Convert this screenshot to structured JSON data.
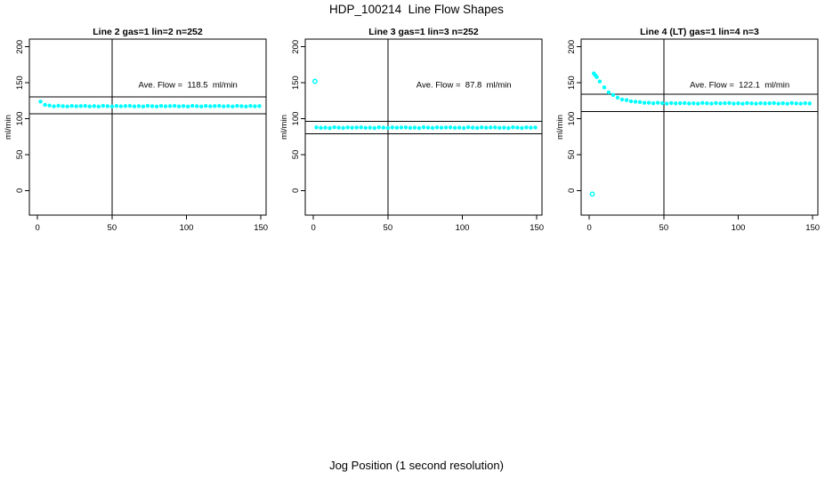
{
  "page": {
    "title": "HDP_100214  Line Flow Shapes",
    "x_axis_label": "Jog Position (1 second resolution)"
  },
  "colors": {
    "points": "#00FFFF",
    "axis": "#000000",
    "background": "#FFFFFF"
  },
  "chart_data": [
    {
      "type": "scatter",
      "title": "Line 2 gas=1 lin=2 n=252",
      "line": 2,
      "gas": 1,
      "lin": 2,
      "n": 252,
      "ave_flow": 118.5,
      "annotation": "Ave. Flow =  118.5  ml/min",
      "annotation_xy": [
        101,
        147
      ],
      "ylabel": "ml/min",
      "xlim": [
        -5.5,
        153.5
      ],
      "ylim": [
        -34.3,
        210.8
      ],
      "xticks": [
        0,
        50,
        100,
        150
      ],
      "yticks": [
        0,
        50,
        100,
        150,
        200
      ],
      "vline_x": 50,
      "hlines": [
        130.4,
        106.7
      ],
      "grid": false,
      "series": [
        {
          "name": "flow",
          "marker": "dot",
          "points": [
            [
              2,
              123.8
            ],
            [
              5,
              119.3
            ],
            [
              8,
              118.3
            ],
            [
              11,
              117.2
            ],
            [
              14,
              118.0
            ],
            [
              17,
              117.4
            ],
            [
              20,
              117.0
            ],
            [
              23,
              117.7
            ],
            [
              26,
              117.3
            ],
            [
              29,
              117.6
            ],
            [
              32,
              117.8
            ],
            [
              35,
              117.1
            ],
            [
              38,
              117.5
            ],
            [
              41,
              116.9
            ],
            [
              44,
              117.9
            ],
            [
              47,
              117.4
            ],
            [
              50,
              117.0
            ],
            [
              53,
              117.7
            ],
            [
              56,
              117.3
            ],
            [
              59,
              117.6
            ],
            [
              62,
              117.8
            ],
            [
              65,
              117.1
            ],
            [
              68,
              117.5
            ],
            [
              71,
              116.9
            ],
            [
              74,
              117.9
            ],
            [
              77,
              117.4
            ],
            [
              80,
              117.0
            ],
            [
              83,
              117.7
            ],
            [
              86,
              117.3
            ],
            [
              89,
              117.6
            ],
            [
              92,
              117.8
            ],
            [
              95,
              117.1
            ],
            [
              98,
              117.5
            ],
            [
              101,
              116.9
            ],
            [
              104,
              117.9
            ],
            [
              107,
              117.4
            ],
            [
              110,
              117.0
            ],
            [
              113,
              117.7
            ],
            [
              116,
              117.3
            ],
            [
              119,
              117.6
            ],
            [
              122,
              117.8
            ],
            [
              125,
              117.1
            ],
            [
              128,
              117.5
            ],
            [
              131,
              116.9
            ],
            [
              134,
              117.9
            ],
            [
              137,
              117.4
            ],
            [
              140,
              117.0
            ],
            [
              143,
              117.7
            ],
            [
              146,
              117.3
            ],
            [
              149,
              117.6
            ]
          ]
        },
        {
          "name": "outliers",
          "marker": "ring",
          "points": []
        }
      ]
    },
    {
      "type": "scatter",
      "title": "Line 3 gas=1 lin=3 n=252",
      "line": 3,
      "gas": 1,
      "lin": 3,
      "n": 252,
      "ave_flow": 87.8,
      "annotation": "Ave. Flow =  87.8  ml/min",
      "annotation_xy": [
        101,
        147
      ],
      "ylabel": "ml/min",
      "xlim": [
        -5.5,
        153.5
      ],
      "ylim": [
        -34.3,
        210.8
      ],
      "xticks": [
        0,
        50,
        100,
        150
      ],
      "yticks": [
        0,
        50,
        100,
        150,
        200
      ],
      "vline_x": 50,
      "hlines": [
        96.6,
        79.0
      ],
      "grid": false,
      "series": [
        {
          "name": "flow",
          "marker": "dot",
          "points": [
            [
              2,
              87.9
            ],
            [
              5,
              87.2
            ],
            [
              8,
              87.6
            ],
            [
              11,
              87.0
            ],
            [
              14,
              88.0
            ],
            [
              17,
              87.5
            ],
            [
              20,
              87.1
            ],
            [
              23,
              87.8
            ],
            [
              26,
              87.4
            ],
            [
              29,
              87.7
            ],
            [
              32,
              87.9
            ],
            [
              35,
              87.2
            ],
            [
              38,
              87.6
            ],
            [
              41,
              87.0
            ],
            [
              44,
              88.0
            ],
            [
              47,
              87.5
            ],
            [
              50,
              87.1
            ],
            [
              53,
              87.8
            ],
            [
              56,
              87.4
            ],
            [
              59,
              87.7
            ],
            [
              62,
              87.9
            ],
            [
              65,
              87.2
            ],
            [
              68,
              87.6
            ],
            [
              71,
              87.0
            ],
            [
              74,
              88.0
            ],
            [
              77,
              87.5
            ],
            [
              80,
              87.1
            ],
            [
              83,
              87.8
            ],
            [
              86,
              87.4
            ],
            [
              89,
              87.7
            ],
            [
              92,
              87.9
            ],
            [
              95,
              87.2
            ],
            [
              98,
              87.6
            ],
            [
              101,
              87.0
            ],
            [
              104,
              88.0
            ],
            [
              107,
              87.5
            ],
            [
              110,
              87.1
            ],
            [
              113,
              87.8
            ],
            [
              116,
              87.4
            ],
            [
              119,
              87.7
            ],
            [
              122,
              87.9
            ],
            [
              125,
              87.2
            ],
            [
              128,
              87.6
            ],
            [
              131,
              87.0
            ],
            [
              134,
              88.0
            ],
            [
              137,
              87.5
            ],
            [
              140,
              87.1
            ],
            [
              143,
              87.8
            ],
            [
              146,
              87.4
            ],
            [
              149,
              87.7
            ]
          ]
        },
        {
          "name": "outliers",
          "marker": "ring",
          "points": [
            [
              1,
              152
            ]
          ]
        }
      ]
    },
    {
      "type": "scatter",
      "title": "Line 4 (LT) gas=1 lin=4 n=3",
      "line": 4,
      "gas": 1,
      "lin": 4,
      "n": 3,
      "ave_flow": 122.1,
      "annotation": "Ave. Flow =  122.1  ml/min",
      "annotation_xy": [
        101,
        147
      ],
      "ylabel": "ml/min",
      "xlim": [
        -5.5,
        153.5
      ],
      "ylim": [
        -34.3,
        210.8
      ],
      "xticks": [
        0,
        50,
        100,
        150
      ],
      "yticks": [
        0,
        50,
        100,
        150,
        200
      ],
      "vline_x": 50,
      "hlines": [
        134.3,
        109.9
      ],
      "grid": false,
      "series": [
        {
          "name": "flow",
          "marker": "dot",
          "points": [
            [
              3,
              163.0
            ],
            [
              4,
              160.5
            ],
            [
              5,
              158.0
            ],
            [
              7,
              151.8
            ],
            [
              10,
              143.5
            ],
            [
              13,
              136.6
            ],
            [
              16,
              133.1
            ],
            [
              19,
              129.4
            ],
            [
              22,
              126.7
            ],
            [
              25,
              125.8
            ],
            [
              28,
              124.2
            ],
            [
              31,
              123.6
            ],
            [
              34,
              123.2
            ],
            [
              37,
              122.1
            ],
            [
              40,
              122.2
            ],
            [
              43,
              121.4
            ],
            [
              46,
              122.2
            ],
            [
              49,
              121.6
            ],
            [
              52,
              121.0
            ],
            [
              55,
              121.7
            ],
            [
              58,
              121.3
            ],
            [
              61,
              121.6
            ],
            [
              64,
              121.8
            ],
            [
              67,
              121.1
            ],
            [
              70,
              121.5
            ],
            [
              73,
              120.9
            ],
            [
              76,
              121.9
            ],
            [
              79,
              121.4
            ],
            [
              82,
              121.0
            ],
            [
              85,
              121.7
            ],
            [
              88,
              121.3
            ],
            [
              91,
              121.6
            ],
            [
              94,
              121.8
            ],
            [
              97,
              121.0
            ],
            [
              100,
              121.4
            ],
            [
              103,
              120.8
            ],
            [
              106,
              121.8
            ],
            [
              109,
              121.3
            ],
            [
              112,
              120.9
            ],
            [
              115,
              121.6
            ],
            [
              118,
              121.2
            ],
            [
              121,
              121.5
            ],
            [
              124,
              121.7
            ],
            [
              127,
              121.0
            ],
            [
              130,
              121.4
            ],
            [
              133,
              120.8
            ],
            [
              136,
              121.8
            ],
            [
              139,
              121.3
            ],
            [
              142,
              120.9
            ],
            [
              145,
              121.6
            ],
            [
              148,
              121.2
            ]
          ]
        },
        {
          "name": "outliers",
          "marker": "ring",
          "points": [
            [
              2,
              -5
            ]
          ]
        }
      ]
    }
  ]
}
